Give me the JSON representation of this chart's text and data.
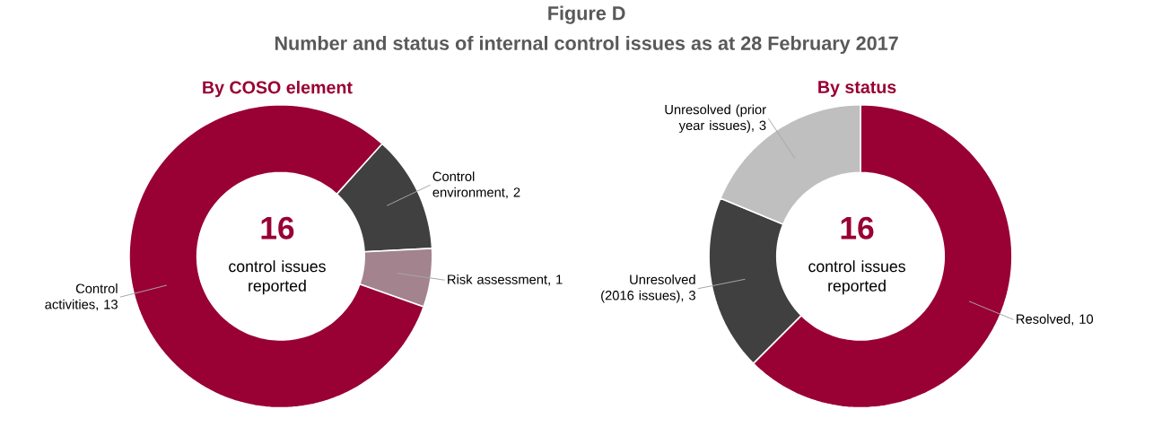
{
  "chart_data": [
    {
      "type": "donut",
      "title": "By COSO element",
      "annotations": [
        "Figure D",
        "Number and status of internal control issues as at 28 February 2017",
        "16",
        "control issues reported"
      ],
      "categories": [
        "Control environment",
        "Risk assessment",
        "Control activities"
      ],
      "values": [
        2,
        1,
        13
      ],
      "colors": [
        "#404040",
        "#a2838e",
        "#990033"
      ],
      "value_labels": [
        ", 2",
        ", 1",
        ", 13"
      ]
    },
    {
      "type": "donut",
      "title": "By status",
      "annotations": [
        "16",
        "control issues reported"
      ],
      "categories": [
        "Resolved",
        "Unresolved (2016 issues)",
        "Unresolved (prior year issues)"
      ],
      "values": [
        10,
        3,
        3
      ],
      "colors": [
        "#990033",
        "#404040",
        "#bfbfbf"
      ],
      "value_labels": [
        ", 10",
        ", 3",
        ", 3"
      ]
    }
  ]
}
